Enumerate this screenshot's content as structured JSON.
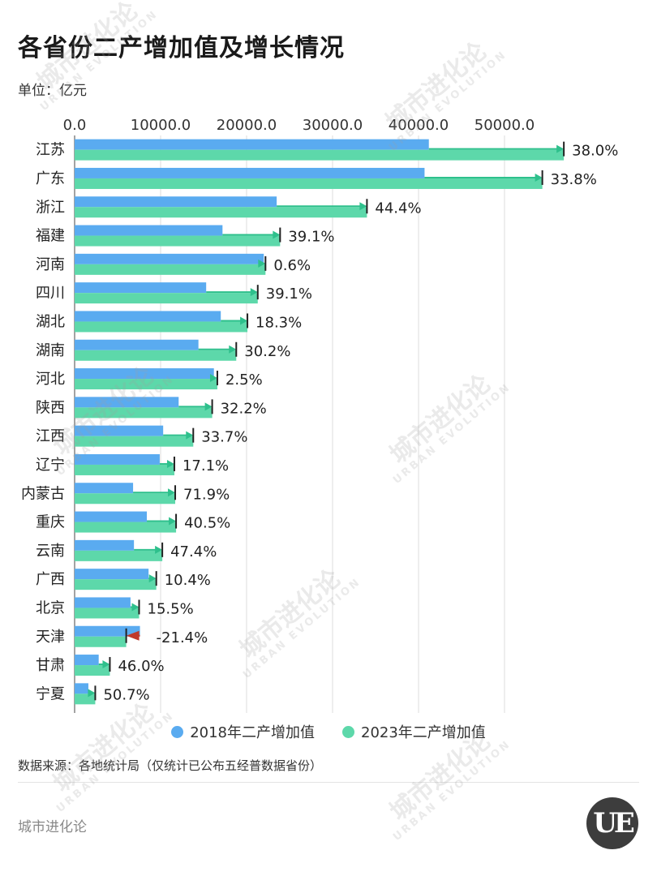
{
  "header": {
    "title": "各省份二产增加值及增长情况",
    "unit": "单位：亿元"
  },
  "footer": {
    "source": "数据来源：各地统计局（仅统计已公布五经普数据省份）",
    "brand": "城市进化论",
    "logo_text": "UE"
  },
  "watermark": {
    "cn": "城市进化论",
    "en": "URBAN EVOLUTION"
  },
  "colors": {
    "series2018": "#5aabf0",
    "series2023": "#5dd8aa",
    "arrowUp": "#2ec08c",
    "arrowDown": "#c0392b",
    "grid": "#dddddd"
  },
  "chart_data": {
    "type": "bar",
    "orientation": "horizontal",
    "title": "各省份二产增加值及增长情况",
    "ylabel": "",
    "xlabel": "单位：亿元",
    "xlim": [
      0,
      60000
    ],
    "xticks": [
      0,
      10000,
      20000,
      30000,
      40000,
      50000
    ],
    "xtick_labels": [
      "0.0",
      "10000.0",
      "20000.0",
      "30000.0",
      "40000.0",
      "50000.0"
    ],
    "grid": true,
    "legend_position": "bottom",
    "categories": [
      "江苏",
      "广东",
      "浙江",
      "福建",
      "河南",
      "四川",
      "湖北",
      "湖南",
      "河北",
      "陕西",
      "江西",
      "辽宁",
      "内蒙古",
      "重庆",
      "云南",
      "广西",
      "北京",
      "天津",
      "甘肃",
      "宁夏"
    ],
    "series": [
      {
        "name": "2018年二产增加值",
        "values": [
          41200,
          40700,
          23500,
          17200,
          22000,
          15300,
          17000,
          14400,
          16200,
          12100,
          10300,
          9900,
          6800,
          8400,
          6900,
          8600,
          6500,
          7600,
          2800,
          1600
        ]
      },
      {
        "name": "2023年二产增加值",
        "values": [
          56900,
          54400,
          34000,
          23900,
          22200,
          21300,
          20100,
          18800,
          16600,
          16000,
          13800,
          11600,
          11700,
          11800,
          10200,
          9500,
          7500,
          6000,
          4100,
          2400
        ]
      }
    ],
    "growth_labels": [
      "38.0%",
      "33.8%",
      "44.4%",
      "39.1%",
      "0.6%",
      "39.1%",
      "18.3%",
      "30.2%",
      "2.5%",
      "32.2%",
      "33.7%",
      "17.1%",
      "71.9%",
      "40.5%",
      "47.4%",
      "10.4%",
      "15.5%",
      "-21.4%",
      "46.0%",
      "50.7%"
    ]
  }
}
